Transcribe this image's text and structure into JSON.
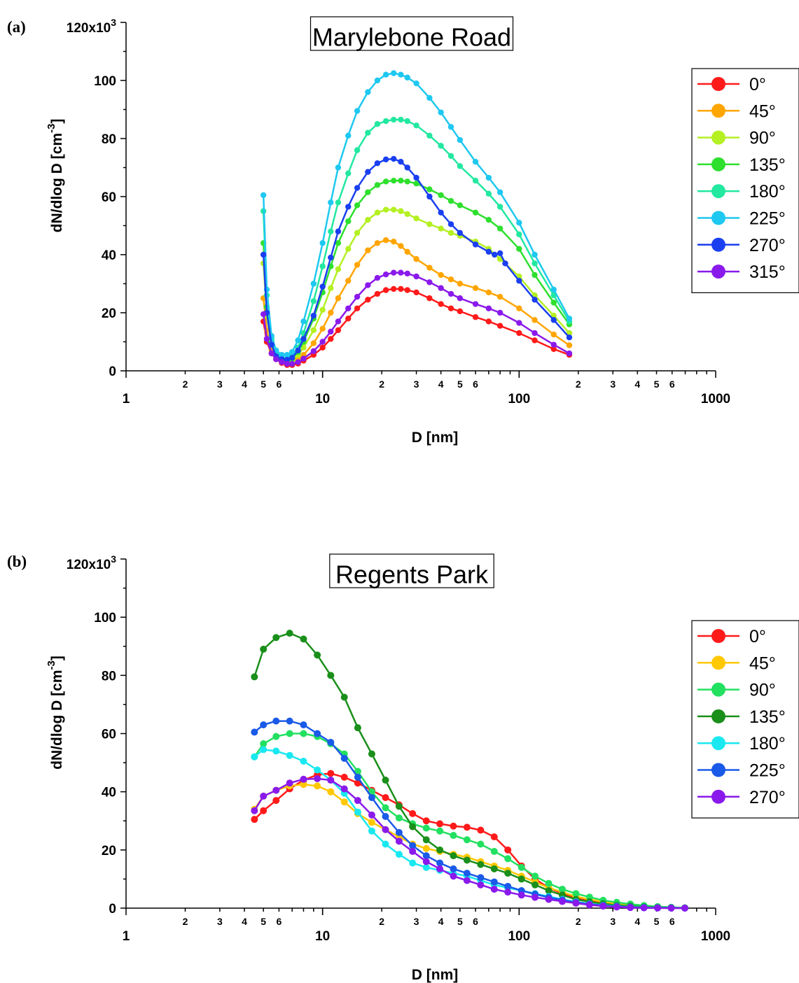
{
  "chart_data": [
    {
      "type": "line",
      "panel_label": "(a)",
      "title": "Marylebone Road",
      "xlabel": "D [nm]",
      "ylabel": "dN/dlog D [cm",
      "ylabel_sup": "-3",
      "ylabel_close": "]",
      "xscale": "log",
      "xlim": [
        1,
        1000
      ],
      "ylim": [
        0,
        120000
      ],
      "y_ticks": [
        "0",
        "20",
        "40",
        "60",
        "80",
        "100"
      ],
      "y_top_tick": "120x10",
      "y_top_tick_sup": "3",
      "x_major_ticks": [
        "1",
        "10",
        "100",
        "1000"
      ],
      "x_minor_ticks": [
        "2",
        "3",
        "4",
        "5",
        "6"
      ],
      "legend_position": "top-right",
      "series": [
        {
          "name": "0°",
          "color": "#ff1a1a",
          "x": [
            5.0,
            5.2,
            5.5,
            5.8,
            6.2,
            6.6,
            7.0,
            7.5,
            8.0,
            9.0,
            10,
            11,
            12,
            13.5,
            15,
            17,
            19,
            21,
            23,
            25,
            27,
            30,
            35,
            40,
            45,
            50,
            60,
            70,
            80,
            100,
            120,
            150,
            180
          ],
          "y": [
            17000,
            10000,
            6000,
            4000,
            2700,
            2000,
            2000,
            2500,
            3500,
            5500,
            8000,
            11000,
            14000,
            18000,
            21500,
            24500,
            26500,
            27800,
            28200,
            28200,
            27800,
            27000,
            25000,
            23000,
            21500,
            20500,
            18500,
            17000,
            15500,
            13000,
            10500,
            7500,
            5500
          ]
        },
        {
          "name": "45°",
          "color": "#ffa500",
          "x": [
            5.0,
            5.2,
            5.5,
            5.8,
            6.2,
            6.6,
            7.0,
            7.5,
            8.0,
            9.0,
            10,
            11,
            12,
            13.5,
            15,
            17,
            19,
            21,
            23,
            25,
            27,
            30,
            35,
            40,
            45,
            50,
            60,
            70,
            80,
            100,
            120,
            150,
            180
          ],
          "y": [
            25000,
            14000,
            7000,
            4200,
            3000,
            2600,
            2900,
            4000,
            5500,
            9500,
            14500,
            20000,
            25000,
            31000,
            36500,
            41500,
            44000,
            45000,
            44500,
            43000,
            41000,
            38500,
            35500,
            33000,
            31500,
            30000,
            28500,
            27000,
            25500,
            21500,
            17500,
            12500,
            8800
          ]
        },
        {
          "name": "90°",
          "color": "#b4f022",
          "x": [
            5.0,
            5.2,
            5.5,
            5.8,
            6.2,
            6.6,
            7.0,
            7.5,
            8.0,
            9.0,
            10,
            11,
            12,
            13.5,
            15,
            17,
            19,
            21,
            23,
            25,
            27,
            30,
            35,
            40,
            45,
            50,
            60,
            70,
            80,
            100,
            120,
            150,
            180
          ],
          "y": [
            37000,
            19000,
            9000,
            5000,
            3500,
            3000,
            3500,
            5500,
            8000,
            14000,
            21000,
            28500,
            35000,
            42000,
            47500,
            52000,
            54500,
            55500,
            55500,
            55000,
            54000,
            52500,
            50500,
            49000,
            47500,
            46500,
            44500,
            42000,
            38500,
            32500,
            26000,
            19000,
            13000
          ]
        },
        {
          "name": "135°",
          "color": "#2ee02e",
          "x": [
            5.0,
            5.2,
            5.5,
            5.8,
            6.2,
            6.6,
            7.0,
            7.5,
            8.0,
            9.0,
            10,
            11,
            12,
            13.5,
            15,
            17,
            19,
            21,
            23,
            25,
            27,
            30,
            35,
            40,
            45,
            50,
            60,
            70,
            80,
            100,
            120,
            150,
            180
          ],
          "y": [
            44000,
            22000,
            10000,
            5500,
            4000,
            3500,
            4200,
            6500,
            10000,
            18000,
            27000,
            36000,
            44000,
            51500,
            57000,
            61500,
            64000,
            65200,
            65500,
            65500,
            65200,
            64500,
            62500,
            60500,
            58500,
            57000,
            54500,
            52000,
            49000,
            42000,
            33000,
            23500,
            16000
          ]
        },
        {
          "name": "180°",
          "color": "#22e8a0",
          "x": [
            5.0,
            5.2,
            5.5,
            5.8,
            6.2,
            6.6,
            7.0,
            7.5,
            8.0,
            9.0,
            10,
            11,
            12,
            13.5,
            15,
            17,
            19,
            21,
            23,
            25,
            27,
            30,
            35,
            40,
            45,
            50,
            60,
            70,
            80,
            100,
            120,
            150,
            180
          ],
          "y": [
            55000,
            26000,
            11000,
            6000,
            4500,
            4200,
            5000,
            8000,
            13000,
            24000,
            36000,
            48000,
            58000,
            68000,
            76000,
            82000,
            85000,
            86000,
            86500,
            86500,
            86000,
            84500,
            81000,
            77500,
            74000,
            70500,
            65500,
            61000,
            56500,
            47000,
            37000,
            26000,
            17000
          ]
        },
        {
          "name": "225°",
          "color": "#1ec8f0",
          "x": [
            5.0,
            5.2,
            5.5,
            5.8,
            6.2,
            6.6,
            7.0,
            7.5,
            8.0,
            9.0,
            10,
            11,
            12,
            13.5,
            15,
            17,
            19,
            21,
            23,
            25,
            27,
            30,
            35,
            40,
            45,
            50,
            60,
            70,
            80,
            100,
            120,
            150,
            180
          ],
          "y": [
            60500,
            28000,
            12000,
            7000,
            5500,
            5500,
            6500,
            10500,
            17000,
            30000,
            44000,
            58000,
            70000,
            81000,
            89500,
            96000,
            100000,
            102000,
            102500,
            102000,
            101000,
            99000,
            94000,
            89000,
            84000,
            79500,
            72000,
            66500,
            61500,
            51000,
            40000,
            28000,
            18000
          ]
        },
        {
          "name": "270°",
          "color": "#1a3ff0",
          "x": [
            5.0,
            5.2,
            5.5,
            5.8,
            6.2,
            6.6,
            7.0,
            7.5,
            8.0,
            9.0,
            10,
            11,
            12,
            13.5,
            15,
            17,
            19,
            21,
            23,
            25,
            27,
            30,
            35,
            40,
            45,
            50,
            60,
            70,
            75,
            80,
            85,
            100,
            120,
            150,
            180
          ],
          "y": [
            40000,
            20000,
            9000,
            5000,
            4000,
            3800,
            4500,
            7000,
            11000,
            19000,
            29000,
            39000,
            48000,
            56500,
            63000,
            68500,
            71500,
            72800,
            73000,
            72000,
            70000,
            66500,
            60000,
            54500,
            50500,
            47500,
            43500,
            41000,
            40000,
            40500,
            37000,
            31000,
            24500,
            17500,
            11500
          ]
        },
        {
          "name": "315°",
          "color": "#8a1aeb",
          "x": [
            5.0,
            5.2,
            5.5,
            5.8,
            6.2,
            6.6,
            7.0,
            7.5,
            8.0,
            9.0,
            10,
            11,
            12,
            13.5,
            15,
            17,
            19,
            21,
            23,
            25,
            27,
            30,
            35,
            40,
            45,
            50,
            60,
            70,
            80,
            100,
            120,
            150,
            180
          ],
          "y": [
            19500,
            11000,
            6000,
            4000,
            3000,
            2400,
            2400,
            3000,
            4200,
            6800,
            10000,
            13500,
            17000,
            21500,
            25500,
            29500,
            32000,
            33200,
            33800,
            33800,
            33500,
            32500,
            30500,
            28500,
            26500,
            25000,
            23000,
            21500,
            20000,
            16500,
            13000,
            9000,
            6000
          ]
        }
      ]
    },
    {
      "type": "line",
      "panel_label": "(b)",
      "title": "Regents Park",
      "xlabel": "D [nm]",
      "ylabel": "dN/dlog D [cm",
      "ylabel_sup": "-3",
      "ylabel_close": "]",
      "xscale": "log",
      "xlim": [
        1,
        1000
      ],
      "ylim": [
        0,
        120000
      ],
      "y_ticks": [
        "0",
        "20",
        "40",
        "60",
        "80",
        "100"
      ],
      "y_top_tick": "120x10",
      "y_top_tick_sup": "3",
      "x_major_ticks": [
        "1",
        "10",
        "100",
        "1000"
      ],
      "x_minor_ticks": [
        "2",
        "3",
        "4",
        "5",
        "6"
      ],
      "legend_position": "top-right",
      "x": [
        4.5,
        5.0,
        5.8,
        6.8,
        8.0,
        9.4,
        11.0,
        12.9,
        15.1,
        17.8,
        20.9,
        24.5,
        28.7,
        33.7,
        39.5,
        46.3,
        54.3,
        63.7,
        74.7,
        87.6,
        102.8,
        120.5,
        141.4,
        165.8,
        194.5,
        228.1,
        267.6,
        313.8,
        368.1,
        431.7,
        506.4,
        594.0,
        696.8
      ],
      "series": [
        {
          "name": "0°",
          "color": "#ff1a1a",
          "y": [
            30500,
            33500,
            37000,
            41000,
            44000,
            45800,
            46300,
            45000,
            43000,
            40500,
            38000,
            35500,
            32500,
            30000,
            29000,
            28200,
            27800,
            26800,
            24500,
            20000,
            14500,
            10000,
            7000,
            5000,
            3500,
            2400,
            1800,
            1200,
            800,
            500,
            300,
            200,
            100
          ]
        },
        {
          "name": "45°",
          "color": "#ffc800",
          "y": [
            34000,
            38500,
            40500,
            42000,
            42500,
            42000,
            40000,
            36500,
            32500,
            29500,
            27000,
            24500,
            22000,
            20500,
            19500,
            18500,
            17500,
            16000,
            14500,
            13000,
            11000,
            9000,
            7000,
            5500,
            4000,
            3000,
            2200,
            1500,
            1000,
            700,
            400,
            250,
            100
          ]
        },
        {
          "name": "90°",
          "color": "#22e060",
          "y": [
            52000,
            56500,
            59000,
            60000,
            60000,
            59000,
            56500,
            53000,
            47000,
            40000,
            34500,
            31000,
            29000,
            27500,
            26500,
            25000,
            23500,
            22000,
            19500,
            17000,
            14000,
            11000,
            8500,
            6500,
            5000,
            3800,
            2700,
            2000,
            1400,
            900,
            550,
            300,
            100
          ]
        },
        {
          "name": "135°",
          "color": "#1a8f1a",
          "y": [
            79500,
            89000,
            93000,
            94500,
            92500,
            87000,
            80000,
            72500,
            62000,
            53000,
            44000,
            35000,
            28000,
            23500,
            20000,
            18000,
            16500,
            15000,
            13500,
            12000,
            10000,
            8000,
            6000,
            4500,
            3000,
            2200,
            1500,
            1000,
            700,
            400,
            250,
            150,
            100
          ]
        },
        {
          "name": "180°",
          "color": "#1ae8f0",
          "y": [
            52000,
            54500,
            54000,
            52500,
            50500,
            47500,
            44000,
            39500,
            33000,
            26500,
            22000,
            18500,
            15500,
            14000,
            13000,
            12000,
            11000,
            9500,
            8000,
            7000,
            6000,
            5000,
            4000,
            3000,
            2200,
            1500,
            1000,
            700,
            400,
            250,
            150,
            100,
            50
          ]
        },
        {
          "name": "225°",
          "color": "#1a5ae8",
          "y": [
            60500,
            63000,
            64300,
            64300,
            63000,
            60000,
            57000,
            51500,
            45000,
            38000,
            31500,
            26000,
            21500,
            18000,
            15500,
            13500,
            12000,
            10500,
            9000,
            7500,
            6000,
            4800,
            3700,
            2800,
            2000,
            1400,
            900,
            600,
            350,
            200,
            100,
            50,
            0
          ]
        },
        {
          "name": "270°",
          "color": "#8a1aeb",
          "y": [
            33500,
            38500,
            40500,
            43000,
            44300,
            44500,
            44000,
            41000,
            37000,
            32000,
            27000,
            23000,
            19500,
            16000,
            13500,
            11000,
            9500,
            8000,
            6500,
            5500,
            4500,
            3700,
            3000,
            2300,
            1700,
            1100,
            700,
            400,
            200,
            100,
            50,
            0,
            0
          ]
        }
      ]
    }
  ]
}
